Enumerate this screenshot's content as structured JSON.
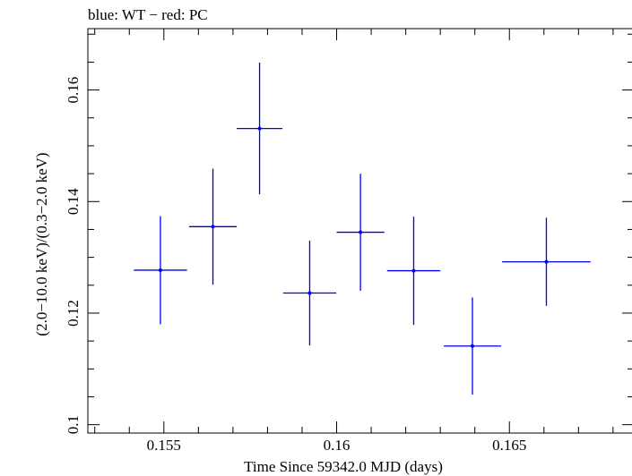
{
  "chart_data": {
    "type": "scatter",
    "title": "blue: WT − red: PC",
    "xlabel": "Time Since 59342.0 MJD (days)",
    "ylabel": "(2.0−10.0 keV)/(0.3−2.0 keV)",
    "xlim": [
      0.1528,
      0.1686
    ],
    "ylim": [
      0.0985,
      0.171
    ],
    "x_ticks": [
      {
        "value": 0.155,
        "label": "0.155"
      },
      {
        "value": 0.16,
        "label": "0.16"
      },
      {
        "value": 0.165,
        "label": "0.165"
      }
    ],
    "y_ticks": [
      {
        "value": 0.1,
        "label": "0.1"
      },
      {
        "value": 0.12,
        "label": "0.12"
      },
      {
        "value": 0.14,
        "label": "0.14"
      },
      {
        "value": 0.16,
        "label": "0.16"
      }
    ],
    "grid": false,
    "series": [
      {
        "color": "#0000ee",
        "points": [
          {
            "x": 0.1549,
            "y": 0.1277,
            "xerr": 0.00077,
            "yerr_low": 0.0097,
            "yerr_high": 0.0097
          },
          {
            "x": 0.15642,
            "y": 0.1355,
            "xerr": 0.00069,
            "yerr_low": 0.0104,
            "yerr_high": 0.0104
          },
          {
            "x": 0.15777,
            "y": 0.1531,
            "xerr": 0.00066,
            "yerr_low": 0.0118,
            "yerr_high": 0.0118
          },
          {
            "x": 0.15922,
            "y": 0.1236,
            "xerr": 0.00077,
            "yerr_low": 0.0094,
            "yerr_high": 0.0094
          },
          {
            "x": 0.16069,
            "y": 0.1345,
            "xerr": 0.00069,
            "yerr_low": 0.0105,
            "yerr_high": 0.0105
          },
          {
            "x": 0.16223,
            "y": 0.1276,
            "xerr": 0.00077,
            "yerr_low": 0.0097,
            "yerr_high": 0.0097
          },
          {
            "x": 0.16393,
            "y": 0.1141,
            "xerr": 0.00083,
            "yerr_low": 0.0087,
            "yerr_high": 0.0087
          },
          {
            "x": 0.16607,
            "y": 0.1292,
            "xerr": 0.00128,
            "yerr_low": 0.0079,
            "yerr_high": 0.0079
          }
        ]
      }
    ]
  }
}
